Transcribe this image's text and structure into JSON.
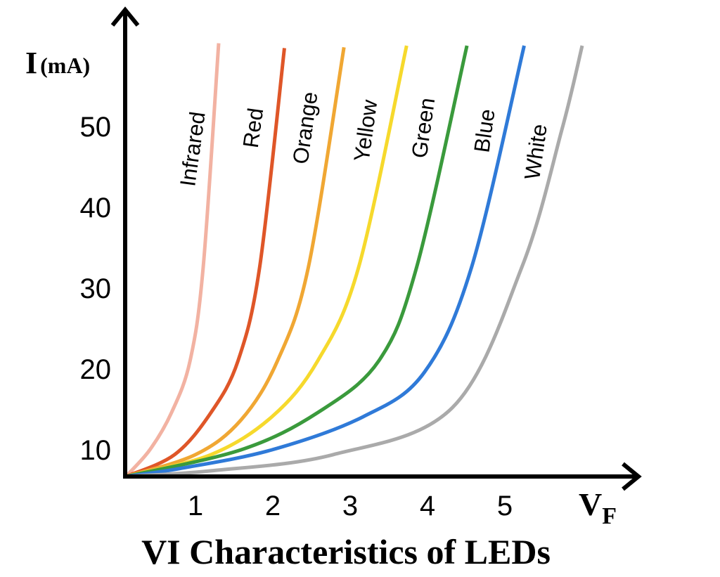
{
  "chart_data": {
    "type": "line",
    "title": "VI Characteristics of LEDs",
    "xlabel": "V",
    "xlabel_sub": "F",
    "ylabel": "I",
    "ylabel_unit": "(mA)",
    "xlim": [
      0.1,
      6.7
    ],
    "ylim": [
      6.7,
      64
    ],
    "grid": false,
    "legend": "inline labels above curves",
    "x_ticks": [
      "1",
      "2",
      "3",
      "4",
      "5"
    ],
    "y_ticks": [
      "10",
      "20",
      "30",
      "40",
      "50"
    ],
    "series": [
      {
        "name": "Infrared",
        "color": "#f2b2a2",
        "points": [
          [
            0.1,
            6.7
          ],
          [
            0.41,
            10.0
          ],
          [
            0.69,
            14.6
          ],
          [
            0.93,
            21.0
          ],
          [
            1.1,
            32.6
          ],
          [
            1.3,
            60.3
          ]
        ]
      },
      {
        "name": "Red",
        "color": "#df5628",
        "points": [
          [
            0.1,
            6.7
          ],
          [
            0.73,
            9.4
          ],
          [
            1.2,
            14.6
          ],
          [
            1.55,
            21.0
          ],
          [
            1.83,
            32.6
          ],
          [
            2.15,
            59.7
          ]
        ]
      },
      {
        "name": "Orange",
        "color": "#f0a733",
        "points": [
          [
            0.1,
            6.7
          ],
          [
            1.0,
            9.4
          ],
          [
            1.59,
            13.7
          ],
          [
            2.06,
            21.0
          ],
          [
            2.46,
            32.6
          ],
          [
            2.92,
            59.8
          ]
        ]
      },
      {
        "name": "Yellow",
        "color": "#f6d92c",
        "points": [
          [
            0.1,
            6.7
          ],
          [
            1.2,
            9.4
          ],
          [
            1.99,
            14.1
          ],
          [
            2.58,
            21.0
          ],
          [
            3.11,
            32.6
          ],
          [
            3.73,
            60.0
          ]
        ]
      },
      {
        "name": "Green",
        "color": "#3a9a3c",
        "points": [
          [
            0.1,
            6.7
          ],
          [
            1.59,
            10.0
          ],
          [
            2.58,
            14.6
          ],
          [
            3.37,
            21.0
          ],
          [
            3.86,
            32.6
          ],
          [
            4.51,
            60.0
          ]
        ]
      },
      {
        "name": "Blue",
        "color": "#2f7ad8",
        "points": [
          [
            0.1,
            6.7
          ],
          [
            0.81,
            7.7
          ],
          [
            1.99,
            10.0
          ],
          [
            3.17,
            14.1
          ],
          [
            3.96,
            19.6
          ],
          [
            4.57,
            32.6
          ],
          [
            5.25,
            60.0
          ]
        ]
      },
      {
        "name": "White",
        "color": "#aaaaaa",
        "points": [
          [
            0.1,
            6.7
          ],
          [
            1.2,
            7.4
          ],
          [
            2.78,
            9.4
          ],
          [
            4.32,
            15.2
          ],
          [
            5.22,
            32.6
          ],
          [
            5.74,
            49.7
          ],
          [
            6.0,
            60.0
          ]
        ]
      }
    ]
  }
}
